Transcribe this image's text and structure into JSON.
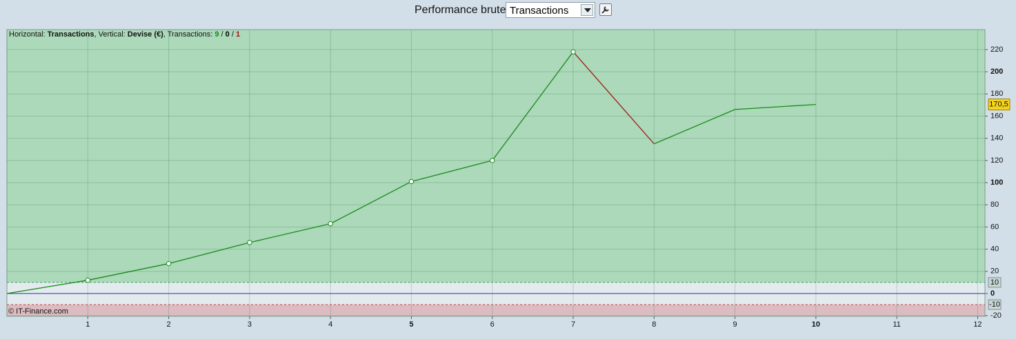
{
  "toolbar": {
    "label": "Performance brute",
    "selected": "Transactions"
  },
  "chart_data": {
    "type": "line",
    "info": [
      {
        "text": "Horizontal: "
      },
      {
        "text": "Transactions",
        "bold": true
      },
      {
        "text": ", Vertical: "
      },
      {
        "text": "Devise (€)",
        "bold": true
      },
      {
        "text": ", Transactions: "
      },
      {
        "value": 9,
        "bold": true,
        "color": "#1a8a1a"
      },
      {
        "text": " / "
      },
      {
        "value": 0,
        "bold": true,
        "color": "#000000"
      },
      {
        "text": " / "
      },
      {
        "value": 1,
        "bold": true,
        "color": "#b01010"
      }
    ],
    "copyright": "© IT-Finance.com",
    "x": [
      0,
      1,
      2,
      3,
      4,
      5,
      6,
      7,
      8,
      9,
      10
    ],
    "values": [
      0,
      12,
      27,
      46,
      63,
      101,
      120,
      218,
      135,
      166,
      170.5
    ],
    "value_labels": [
      null,
      null,
      null,
      null,
      null,
      null,
      null,
      null,
      null,
      null,
      "170,5"
    ],
    "markers": [
      false,
      true,
      true,
      true,
      true,
      true,
      true,
      true,
      false,
      false,
      false
    ],
    "up_color": "#1a8a1a",
    "down_color": "#a01818",
    "xlim": [
      0,
      12.09
    ],
    "xticks": [
      1,
      2,
      3,
      4,
      5,
      6,
      7,
      8,
      9,
      10,
      11,
      12
    ],
    "ylim": [
      -20.5,
      238
    ],
    "yticks": [
      -20,
      0,
      20,
      40,
      60,
      80,
      100,
      120,
      140,
      160,
      180,
      200,
      220
    ],
    "thresholds": [
      {
        "value": 10,
        "color": "#3aa05a"
      },
      {
        "value": -10,
        "color": "#c04040"
      }
    ],
    "grid": true
  }
}
